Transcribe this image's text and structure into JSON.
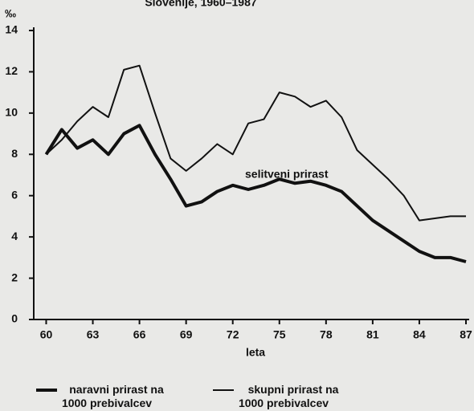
{
  "chart_data": {
    "type": "line",
    "title": "Slovenije, 1960–1987",
    "y_unit": "‰",
    "x_label": "leta",
    "annotation": "selitveni prirast",
    "x": [
      60,
      61,
      62,
      63,
      64,
      65,
      66,
      67,
      68,
      69,
      70,
      71,
      72,
      73,
      74,
      75,
      76,
      77,
      78,
      79,
      80,
      81,
      82,
      83,
      84,
      85,
      86,
      87
    ],
    "series": [
      {
        "name": "naravni prirast na 1000 prebivalcev",
        "color": "#111111",
        "width": 4,
        "values": [
          8.0,
          9.2,
          8.3,
          8.7,
          8.0,
          9.0,
          9.4,
          8.0,
          6.8,
          5.5,
          5.7,
          6.2,
          6.5,
          6.3,
          6.5,
          6.8,
          6.6,
          6.7,
          6.5,
          6.2,
          5.5,
          4.8,
          4.3,
          3.8,
          3.3,
          3.0,
          3.0,
          2.8
        ]
      },
      {
        "name": "skupni prirast na 1000 prebivalcev",
        "color": "#111111",
        "width": 2,
        "values": [
          8.0,
          8.7,
          9.6,
          10.3,
          9.8,
          12.1,
          12.3,
          10.0,
          7.8,
          7.2,
          7.8,
          8.5,
          8.0,
          9.5,
          9.7,
          11.0,
          10.8,
          10.3,
          10.6,
          9.8,
          8.2,
          7.5,
          6.8,
          6.0,
          4.8,
          4.9,
          5.0,
          5.0
        ]
      }
    ],
    "xlim": [
      59.2,
      87
    ],
    "xticks": [
      60,
      63,
      66,
      69,
      72,
      75,
      78,
      81,
      84,
      87
    ],
    "ylim": [
      0,
      14
    ],
    "yticks": [
      0,
      2,
      4,
      6,
      8,
      10,
      12,
      14
    ]
  }
}
